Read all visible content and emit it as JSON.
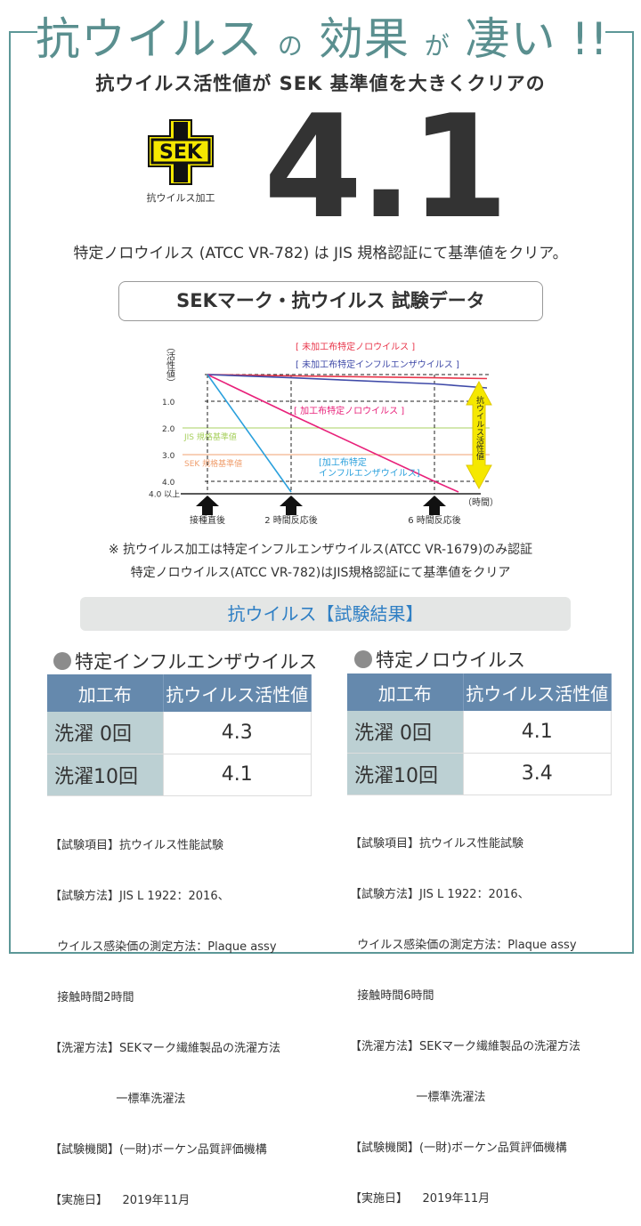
{
  "title": {
    "part1": "抗ウイルス",
    "part2": "の",
    "part3": "効果",
    "part4": "が",
    "part5": "凄い !!"
  },
  "subtitle": "抗ウイルス活性値が SEK 基準値を大きくクリアの",
  "sek_logo": {
    "text": "SEK",
    "caption": "抗ウイルス加工",
    "colors": {
      "yellow": "#f5e800",
      "black": "#111111"
    }
  },
  "headline_value": "4.1",
  "certification_line": "特定ノロウイルス (ATCC VR-782) は JIS 規格認証にて基準値をクリア。",
  "data_box_title": "SEKマーク・抗ウイルス 試験データ",
  "chart_data": {
    "type": "line",
    "ylabel": "（活性値）",
    "xlabel": "（時間）",
    "y_inverted": true,
    "y_ticks": [
      "1.0",
      "2.0",
      "3.0",
      "4.0",
      "4.0 以上"
    ],
    "ylim": [
      0,
      4.4
    ],
    "categories": [
      "接種直後",
      "2 時間反応後",
      "6 時間反応後"
    ],
    "reference_lines": [
      {
        "label": "JIS 規格基準値",
        "value": 2.0,
        "color": "#a8d060"
      },
      {
        "label": "SEK 規格基準値",
        "value": 3.0,
        "color": "#f0a070"
      }
    ],
    "series": [
      {
        "name": "[ 未加工布特定ノロウイルス ]",
        "values": [
          0,
          0.05,
          0.12
        ],
        "end": 0.15,
        "color": "#e8354a"
      },
      {
        "name": "[ 未加工布特定インフルエンザウイルス ]",
        "values": [
          0,
          0.12,
          0.35
        ],
        "end": 0.5,
        "color": "#3f4aa8"
      },
      {
        "name": "[ 加工布特定ノロウイルス ]",
        "values": [
          0,
          1.5,
          4.0
        ],
        "end": 4.4,
        "color": "#e8217a"
      },
      {
        "name": "[加工布特定 インフルエンザウイルス]",
        "values": [
          0,
          4.4,
          null
        ],
        "color": "#2aa0dc"
      }
    ],
    "arrow_label": "抗ウイルス活性値",
    "grid": true
  },
  "notes": [
    "※ 抗ウイルス加工は特定インフルエンザウイルス(ATCC VR-1679)のみ認証",
    "特定ノロウイルス(ATCC VR-782)はJIS規格認証にて基準値をクリア"
  ],
  "results_banner": "抗ウイルス【試験結果】",
  "results": [
    {
      "heading": "特定インフルエンザウイルス",
      "headers": [
        "加工布",
        "抗ウイルス活性値"
      ],
      "rows": [
        {
          "label": "洗濯  0回",
          "value": "4.3"
        },
        {
          "label": "洗濯10回",
          "value": "4.1"
        }
      ],
      "meta": [
        "【試験項目】抗ウイルス性能試験",
        "【試験方法】JIS L 1922：2016、",
        "  ウイルス感染価の測定方法：Plaque assy",
        "  接触時間2時間",
        "【洗濯方法】SEKマーク繊維製品の洗濯方法",
        "                  一標準洗濯法",
        "【試験機関】(一財)ボーケン品質評価機構",
        "【実施日】    2019年11月"
      ]
    },
    {
      "heading": "特定ノロウイルス",
      "headers": [
        "加工布",
        "抗ウイルス活性値"
      ],
      "rows": [
        {
          "label": "洗濯  0回",
          "value": "4.1"
        },
        {
          "label": "洗濯10回",
          "value": "3.4"
        }
      ],
      "meta": [
        "【試験項目】抗ウイルス性能試験",
        "【試験方法】JIS L 1922：2016、",
        "  ウイルス感染価の測定方法：Plaque assy",
        "  接触時間6時間",
        "【洗濯方法】SEKマーク繊維製品の洗濯方法",
        "                  一標準洗濯法",
        "【試験機関】(一財)ボーケン品質評価機構",
        "【実施日】    2019年11月"
      ]
    }
  ],
  "colors": {
    "teal": "#5a8f8f",
    "banner_text": "#2f7fc4",
    "table_header": "#6589ad",
    "table_label": "#bcd0d3"
  }
}
